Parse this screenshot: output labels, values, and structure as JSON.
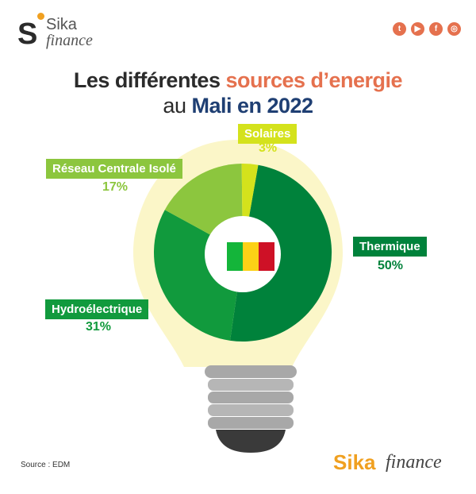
{
  "brand": {
    "logo_s": "S",
    "logo_top": "Sika",
    "logo_bottom": "finance",
    "footer_part1": "Sika",
    "footer_part2": "finance"
  },
  "social": [
    {
      "icon": "twitter-icon",
      "glyph": "t"
    },
    {
      "icon": "youtube-icon",
      "glyph": "▶"
    },
    {
      "icon": "facebook-icon",
      "glyph": "f"
    },
    {
      "icon": "instagram-icon",
      "glyph": "◎"
    }
  ],
  "title": {
    "line1_part1": "Les différentes ",
    "line1_accent": "sources d’energie",
    "line2_part1": "au ",
    "line2_accent": "Mali en 2022"
  },
  "source": "Source : EDM",
  "colors": {
    "thermique": "#00823b",
    "hydro": "#119a3d",
    "reseau": "#8cc63e",
    "solaires": "#d4e21c",
    "accent": "#e5714e",
    "navy": "#1f3f73",
    "glow": "#fbf6c8"
  },
  "chart_data": {
    "type": "pie",
    "title": "Les différentes sources d’energie au Mali en 2022",
    "series": [
      {
        "name": "Thermique",
        "value": 50,
        "label": "50%"
      },
      {
        "name": "Hydroélectrique",
        "value": 31,
        "label": "31%"
      },
      {
        "name": "Réseau Centrale Isolé",
        "value": 17,
        "label": "17%"
      },
      {
        "name": "Solaires",
        "value": 3,
        "label": "3%"
      }
    ],
    "unit": "%",
    "legend": "labels around chart"
  }
}
